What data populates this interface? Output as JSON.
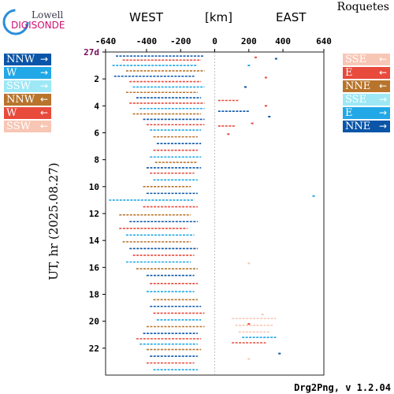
{
  "header": {
    "logo_top": "Lowell",
    "logo_main": "DIGISONDE",
    "station": "Roquetes",
    "west": "WEST",
    "unit": "[km]",
    "east": "EAST"
  },
  "footer": "Drg2Png, v 1.2.04",
  "legend_left": [
    {
      "dir": "NNW",
      "arrow": "→",
      "color": "#0b55a8"
    },
    {
      "dir": "W",
      "arrow": "→",
      "color": "#22a8e6"
    },
    {
      "dir": "SSW",
      "arrow": "→",
      "color": "#9ee8f5"
    },
    {
      "dir": "NNW",
      "arrow": "←",
      "color": "#b8742c"
    },
    {
      "dir": "W",
      "arrow": "←",
      "color": "#e84a3c"
    },
    {
      "dir": "SSW",
      "arrow": "←",
      "color": "#f8c6b4"
    }
  ],
  "legend_right": [
    {
      "dir": "SSE",
      "arrow": "←",
      "color": "#f8c6b4"
    },
    {
      "dir": "E",
      "arrow": "←",
      "color": "#e84a3c"
    },
    {
      "dir": "NNE",
      "arrow": "←",
      "color": "#b8742c"
    },
    {
      "dir": "SSE",
      "arrow": "→",
      "color": "#9ee8f5"
    },
    {
      "dir": "E",
      "arrow": "→",
      "color": "#22a8e6"
    },
    {
      "dir": "NNE",
      "arrow": "→",
      "color": "#0b55a8"
    }
  ],
  "chart_data": {
    "type": "scatter",
    "ylabel": "UT, hr (2025.08.27)",
    "xlim": [
      -640,
      640
    ],
    "ylim": [
      0,
      24
    ],
    "x_ticks": [
      -640,
      -400,
      -200,
      0,
      200,
      400,
      640
    ],
    "x_tick_labels": [
      "-640",
      "-400",
      "-200",
      "0",
      "200",
      "400",
      "640"
    ],
    "y_ticks": [
      0,
      2,
      4,
      6,
      8,
      10,
      12,
      14,
      16,
      18,
      20,
      22
    ],
    "y_tick_labels": [
      "27d",
      "2",
      "4",
      "6",
      "8",
      "10",
      "12",
      "14",
      "16",
      "18",
      "20",
      "22"
    ],
    "y_first_label_color": "#7a0a5a",
    "grid": false,
    "segments": [
      {
        "t": 0.3,
        "x1": -580,
        "x2": -60,
        "color": "#0b55a8"
      },
      {
        "t": 0.6,
        "x1": -540,
        "x2": -80,
        "color": "#e84a3c"
      },
      {
        "t": 1.0,
        "x1": -600,
        "x2": -100,
        "color": "#22a8e6"
      },
      {
        "t": 1.4,
        "x1": -520,
        "x2": -60,
        "color": "#b8742c"
      },
      {
        "t": 1.8,
        "x1": -590,
        "x2": -120,
        "color": "#0b55a8"
      },
      {
        "t": 2.2,
        "x1": -500,
        "x2": -80,
        "color": "#e84a3c"
      },
      {
        "t": 2.6,
        "x1": -480,
        "x2": -60,
        "color": "#22a8e6"
      },
      {
        "t": 3.0,
        "x1": -520,
        "x2": -100,
        "color": "#b8742c"
      },
      {
        "t": 3.4,
        "x1": -460,
        "x2": -80,
        "color": "#0b55a8"
      },
      {
        "t": 3.8,
        "x1": -500,
        "x2": -60,
        "color": "#e84a3c"
      },
      {
        "t": 4.2,
        "x1": -440,
        "x2": -60,
        "color": "#22a8e6"
      },
      {
        "t": 4.6,
        "x1": -480,
        "x2": -80,
        "color": "#b8742c"
      },
      {
        "t": 5.0,
        "x1": -420,
        "x2": -60,
        "color": "#0b55a8"
      },
      {
        "t": 5.4,
        "x1": -400,
        "x2": -60,
        "color": "#e84a3c"
      },
      {
        "t": 5.8,
        "x1": -380,
        "x2": -80,
        "color": "#22a8e6"
      },
      {
        "t": 6.3,
        "x1": -360,
        "x2": -100,
        "color": "#b8742c"
      },
      {
        "t": 6.8,
        "x1": -340,
        "x2": -80,
        "color": "#0b55a8"
      },
      {
        "t": 7.3,
        "x1": -360,
        "x2": -100,
        "color": "#e84a3c"
      },
      {
        "t": 7.8,
        "x1": -380,
        "x2": -80,
        "color": "#22a8e6"
      },
      {
        "t": 8.2,
        "x1": -350,
        "x2": -100,
        "color": "#b8742c"
      },
      {
        "t": 8.6,
        "x1": -400,
        "x2": -80,
        "color": "#0b55a8"
      },
      {
        "t": 9.0,
        "x1": -380,
        "x2": -120,
        "color": "#e84a3c"
      },
      {
        "t": 9.5,
        "x1": -360,
        "x2": -100,
        "color": "#22a8e6"
      },
      {
        "t": 10.0,
        "x1": -420,
        "x2": -140,
        "color": "#b8742c"
      },
      {
        "t": 10.5,
        "x1": -400,
        "x2": -100,
        "color": "#0b55a8"
      },
      {
        "t": 11.0,
        "x1": -620,
        "x2": -120,
        "color": "#22a8e6"
      },
      {
        "t": 11.5,
        "x1": -420,
        "x2": -100,
        "color": "#e84a3c"
      },
      {
        "t": 12.1,
        "x1": -560,
        "x2": -140,
        "color": "#b8742c"
      },
      {
        "t": 12.6,
        "x1": -500,
        "x2": -100,
        "color": "#0b55a8"
      },
      {
        "t": 13.1,
        "x1": -560,
        "x2": -160,
        "color": "#e84a3c"
      },
      {
        "t": 13.6,
        "x1": -520,
        "x2": -120,
        "color": "#22a8e6"
      },
      {
        "t": 14.1,
        "x1": -540,
        "x2": -140,
        "color": "#b8742c"
      },
      {
        "t": 14.6,
        "x1": -500,
        "x2": -100,
        "color": "#0b55a8"
      },
      {
        "t": 15.1,
        "x1": -480,
        "x2": -120,
        "color": "#e84a3c"
      },
      {
        "t": 15.6,
        "x1": -520,
        "x2": -140,
        "color": "#22a8e6"
      },
      {
        "t": 16.1,
        "x1": -460,
        "x2": -100,
        "color": "#b8742c"
      },
      {
        "t": 16.6,
        "x1": -400,
        "x2": -120,
        "color": "#0b55a8"
      },
      {
        "t": 17.2,
        "x1": -380,
        "x2": -100,
        "color": "#e84a3c"
      },
      {
        "t": 17.8,
        "x1": -400,
        "x2": -120,
        "color": "#22a8e6"
      },
      {
        "t": 18.4,
        "x1": -360,
        "x2": -100,
        "color": "#b8742c"
      },
      {
        "t": 18.9,
        "x1": -380,
        "x2": -80,
        "color": "#0b55a8"
      },
      {
        "t": 19.4,
        "x1": -360,
        "x2": -60,
        "color": "#e84a3c"
      },
      {
        "t": 19.9,
        "x1": -340,
        "x2": -80,
        "color": "#22a8e6"
      },
      {
        "t": 20.4,
        "x1": -400,
        "x2": -60,
        "color": "#b8742c"
      },
      {
        "t": 20.9,
        "x1": -420,
        "x2": -100,
        "color": "#0b55a8"
      },
      {
        "t": 21.3,
        "x1": -460,
        "x2": -80,
        "color": "#e84a3c"
      },
      {
        "t": 21.7,
        "x1": -440,
        "x2": -100,
        "color": "#22a8e6"
      },
      {
        "t": 22.1,
        "x1": -400,
        "x2": -80,
        "color": "#b8742c"
      },
      {
        "t": 22.6,
        "x1": -380,
        "x2": -100,
        "color": "#0b55a8"
      },
      {
        "t": 23.1,
        "x1": -400,
        "x2": -120,
        "color": "#e84a3c"
      },
      {
        "t": 23.6,
        "x1": -360,
        "x2": -100,
        "color": "#22a8e6"
      },
      {
        "t": 19.8,
        "x1": 100,
        "x2": 360,
        "color": "#f8c6b4"
      },
      {
        "t": 20.3,
        "x1": 120,
        "x2": 340,
        "color": "#f8c6b4"
      },
      {
        "t": 20.8,
        "x1": 140,
        "x2": 320,
        "color": "#f8c6b4"
      },
      {
        "t": 21.2,
        "x1": 160,
        "x2": 360,
        "color": "#22a8e6"
      },
      {
        "t": 21.6,
        "x1": 100,
        "x2": 300,
        "color": "#e84a3c"
      },
      {
        "t": 3.6,
        "x1": 20,
        "x2": 140,
        "color": "#e84a3c"
      },
      {
        "t": 4.4,
        "x1": 20,
        "x2": 200,
        "color": "#0b55a8"
      },
      {
        "t": 5.5,
        "x1": 20,
        "x2": 120,
        "color": "#e84a3c"
      }
    ],
    "points": [
      {
        "t": 0.4,
        "x": 240,
        "color": "#e84a3c"
      },
      {
        "t": 0.5,
        "x": 360,
        "color": "#0b55a8"
      },
      {
        "t": 1.0,
        "x": 200,
        "color": "#22a8e6"
      },
      {
        "t": 1.9,
        "x": 300,
        "color": "#e84a3c"
      },
      {
        "t": 2.6,
        "x": 180,
        "color": "#0b55a8"
      },
      {
        "t": 4.0,
        "x": 300,
        "color": "#e84a3c"
      },
      {
        "t": 4.8,
        "x": 320,
        "color": "#0b55a8"
      },
      {
        "t": 5.3,
        "x": 220,
        "color": "#e84a3c"
      },
      {
        "t": 6.1,
        "x": 80,
        "color": "#e84a3c"
      },
      {
        "t": 10.7,
        "x": 580,
        "color": "#22a8e6"
      },
      {
        "t": 15.7,
        "x": 200,
        "color": "#f8c6b4"
      },
      {
        "t": 19.5,
        "x": 280,
        "color": "#f8c6b4"
      },
      {
        "t": 20.2,
        "x": 200,
        "color": "#e84a3c"
      },
      {
        "t": 22.4,
        "x": 380,
        "color": "#0b55a8"
      },
      {
        "t": 22.8,
        "x": 200,
        "color": "#f8c6b4"
      }
    ]
  }
}
